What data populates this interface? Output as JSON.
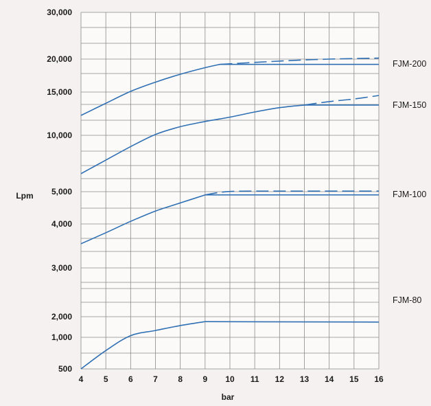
{
  "chart_data": {
    "type": "line",
    "title": "",
    "xlabel": "bar",
    "ylabel": "Lpm",
    "x_ticks": [
      "4",
      "5",
      "6",
      "7",
      "8",
      "9",
      "10",
      "11",
      "12",
      "13",
      "14",
      "15",
      "16"
    ],
    "y_ticks": [
      "500",
      "1,000",
      "2,000",
      "3,000",
      "4,000",
      "5,000",
      "10,000",
      "15,000",
      "20,000",
      "30,000"
    ],
    "xlim": [
      4,
      16
    ],
    "grid": true,
    "series": [
      {
        "name": "FJM-200",
        "points": [
          [
            4,
            12300
          ],
          [
            5,
            13700
          ],
          [
            6,
            15100
          ],
          [
            7,
            16500
          ],
          [
            8,
            17700
          ],
          [
            9,
            18700
          ],
          [
            9.6,
            19200
          ],
          [
            16,
            19200
          ]
        ],
        "dashed": [
          [
            9.6,
            19200
          ],
          [
            12,
            19700
          ],
          [
            14,
            20000
          ],
          [
            16,
            20200
          ]
        ]
      },
      {
        "name": "FJM-150",
        "points": [
          [
            4,
            6600
          ],
          [
            5,
            7800
          ],
          [
            6,
            9000
          ],
          [
            7,
            10100
          ],
          [
            8,
            11000
          ],
          [
            9,
            11600
          ],
          [
            10,
            12100
          ],
          [
            11,
            12700
          ],
          [
            12,
            13200
          ],
          [
            13,
            13500
          ],
          [
            16,
            13500
          ]
        ],
        "dashed": [
          [
            13,
            13500
          ],
          [
            14,
            13900
          ],
          [
            15,
            14200
          ],
          [
            16,
            14600
          ]
        ]
      },
      {
        "name": "FJM-100",
        "points": [
          [
            4,
            3550
          ],
          [
            5,
            3800
          ],
          [
            6,
            4080
          ],
          [
            7,
            4400
          ],
          [
            8,
            4650
          ],
          [
            9,
            4900
          ],
          [
            16,
            4900
          ]
        ],
        "dashed": [
          [
            9,
            4900
          ],
          [
            10,
            5020
          ],
          [
            12,
            5050
          ],
          [
            16,
            5050
          ]
        ]
      },
      {
        "name": "FJM-80",
        "points": [
          [
            4,
            500
          ],
          [
            5,
            790
          ],
          [
            6,
            1080
          ],
          [
            7,
            1330
          ],
          [
            8,
            1570
          ],
          [
            9,
            1760
          ],
          [
            16,
            1740
          ]
        ],
        "dashed": []
      }
    ]
  },
  "colors": {
    "curve": "#2f6fb3",
    "grid": "#8a8a8a",
    "background": "#f4f1f0"
  }
}
